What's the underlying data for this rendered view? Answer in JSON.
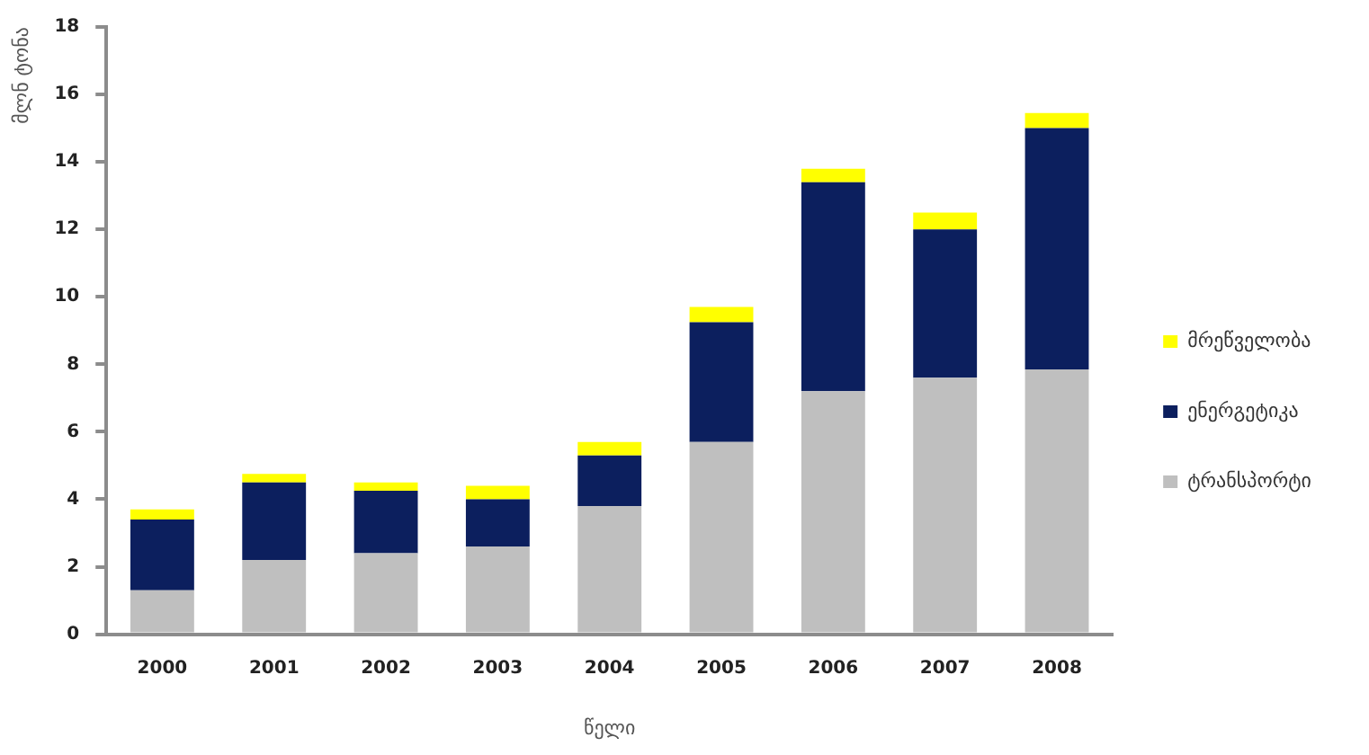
{
  "chart_data": {
    "type": "bar",
    "stacked": true,
    "ylabel": "მლნ ტონა",
    "xlabel": "წელი",
    "categories": [
      "2000",
      "2001",
      "2002",
      "2003",
      "2004",
      "2005",
      "2006",
      "2007",
      "2008"
    ],
    "series": [
      {
        "name": "ტრანსპორტი",
        "color": "#bfbfbf",
        "values": [
          1.3,
          2.2,
          2.4,
          2.6,
          3.8,
          5.7,
          7.2,
          7.6,
          7.85
        ]
      },
      {
        "name": "ენერგეტიკა",
        "color": "#0c1f5e",
        "values": [
          2.1,
          2.3,
          1.85,
          1.4,
          1.5,
          3.55,
          6.2,
          4.4,
          7.15
        ]
      },
      {
        "name": "მრეწველობა",
        "color": "#ffff00",
        "values": [
          0.3,
          0.25,
          0.25,
          0.4,
          0.4,
          0.45,
          0.4,
          0.5,
          0.45
        ]
      }
    ],
    "ylim": [
      0,
      18
    ],
    "yticks": [
      0,
      2,
      4,
      6,
      8,
      10,
      12,
      14,
      16,
      18
    ],
    "legend": "right"
  }
}
